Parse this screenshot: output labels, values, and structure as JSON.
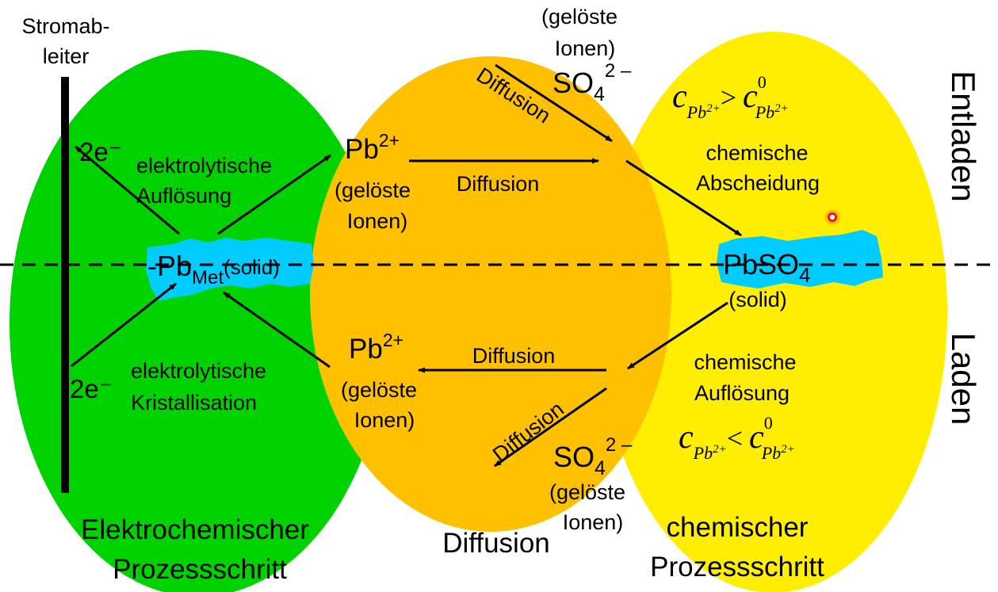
{
  "colors": {
    "electrochemical_zone": "#00d200",
    "diffusion_zone": "#ffc000",
    "chemical_zone": "#ffee00",
    "solid_phase": "#00ccff",
    "background": "#ffffff"
  },
  "current_collector": {
    "line1": "Stromab-",
    "line2": "leiter"
  },
  "side_labels": {
    "discharge": "Entladen",
    "charge": "Laden"
  },
  "zones": {
    "electrochemical": {
      "line1": "Elektrochemischer",
      "line2": "Prozessschritt"
    },
    "diffusion": {
      "label": "Diffusion"
    },
    "chemical": {
      "line1": "chemischer",
      "line2": "Prozessschritt"
    }
  },
  "solids": {
    "lead_metal": {
      "prefix": "-Pb",
      "subscript": "Met",
      "suffix": "(solid)"
    },
    "lead_sulfate": {
      "formula": "PbSO",
      "subscript": "4",
      "state": "(solid)"
    }
  },
  "discharge": {
    "electrons": "2e⁻",
    "process_line1": "elektrolytische",
    "process_line2": "Auflösung",
    "ion": {
      "base": "Pb",
      "charge": "2+"
    },
    "ion_note_line1": "(gelöste",
    "ion_note_line2": "Ionen)",
    "diffusion_horizontal": "Diffusion",
    "diffusion_diagonal": "Diffusion",
    "sulfate": {
      "base": "SO",
      "subscript": "4",
      "charge": "2 –"
    },
    "sulfate_note_line1": "(gelöste",
    "sulfate_note_line2": "Ionen)",
    "chemical_line1": "chemische",
    "chemical_line2": "Abscheidung",
    "condition": {
      "c": "c",
      "sub": "Pb",
      "sub_charge": "2+",
      "operator": ">",
      "c0": "c",
      "c0_sup": "0"
    }
  },
  "charge": {
    "electrons": "2e⁻",
    "process_line1": "elektrolytische",
    "process_line2": "Kristallisation",
    "ion": {
      "base": "Pb",
      "charge": "2+"
    },
    "ion_note_line1": "(gelöste",
    "ion_note_line2": "Ionen)",
    "diffusion_horizontal": "Diffusion",
    "diffusion_diagonal": "Diffusion",
    "sulfate": {
      "base": "SO",
      "subscript": "4",
      "charge": "2 –"
    },
    "sulfate_note_line1": "(gelöste",
    "sulfate_note_line2": "Ionen)",
    "chemical_line1": "chemische",
    "chemical_line2": "Auflösung",
    "condition": {
      "c": "c",
      "sub": "Pb",
      "sub_charge": "2+",
      "operator": "<",
      "c0": "c",
      "c0_sup": "0"
    }
  }
}
